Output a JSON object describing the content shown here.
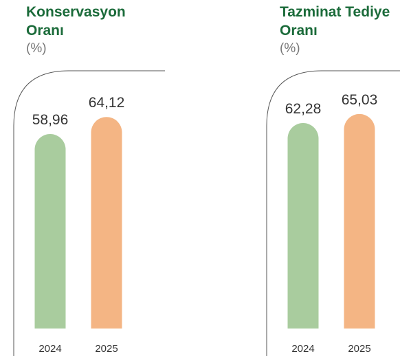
{
  "chart_data": [
    {
      "type": "bar",
      "title": "Konservasyon Oranı",
      "subtitle": "(%)",
      "categories": [
        "2024",
        "2025"
      ],
      "values": [
        58.96,
        64.12
      ],
      "value_labels": [
        "58,96",
        "64,12"
      ],
      "colors": [
        "#a9cc9e",
        "#f4b584"
      ]
    },
    {
      "type": "bar",
      "title": "Tazminat Tediye Oranı",
      "subtitle": "(%)",
      "categories": [
        "2024",
        "2025"
      ],
      "values": [
        62.28,
        65.03
      ],
      "value_labels": [
        "62,28",
        "65,03"
      ],
      "colors": [
        "#a9cc9e",
        "#f4b584"
      ]
    }
  ]
}
